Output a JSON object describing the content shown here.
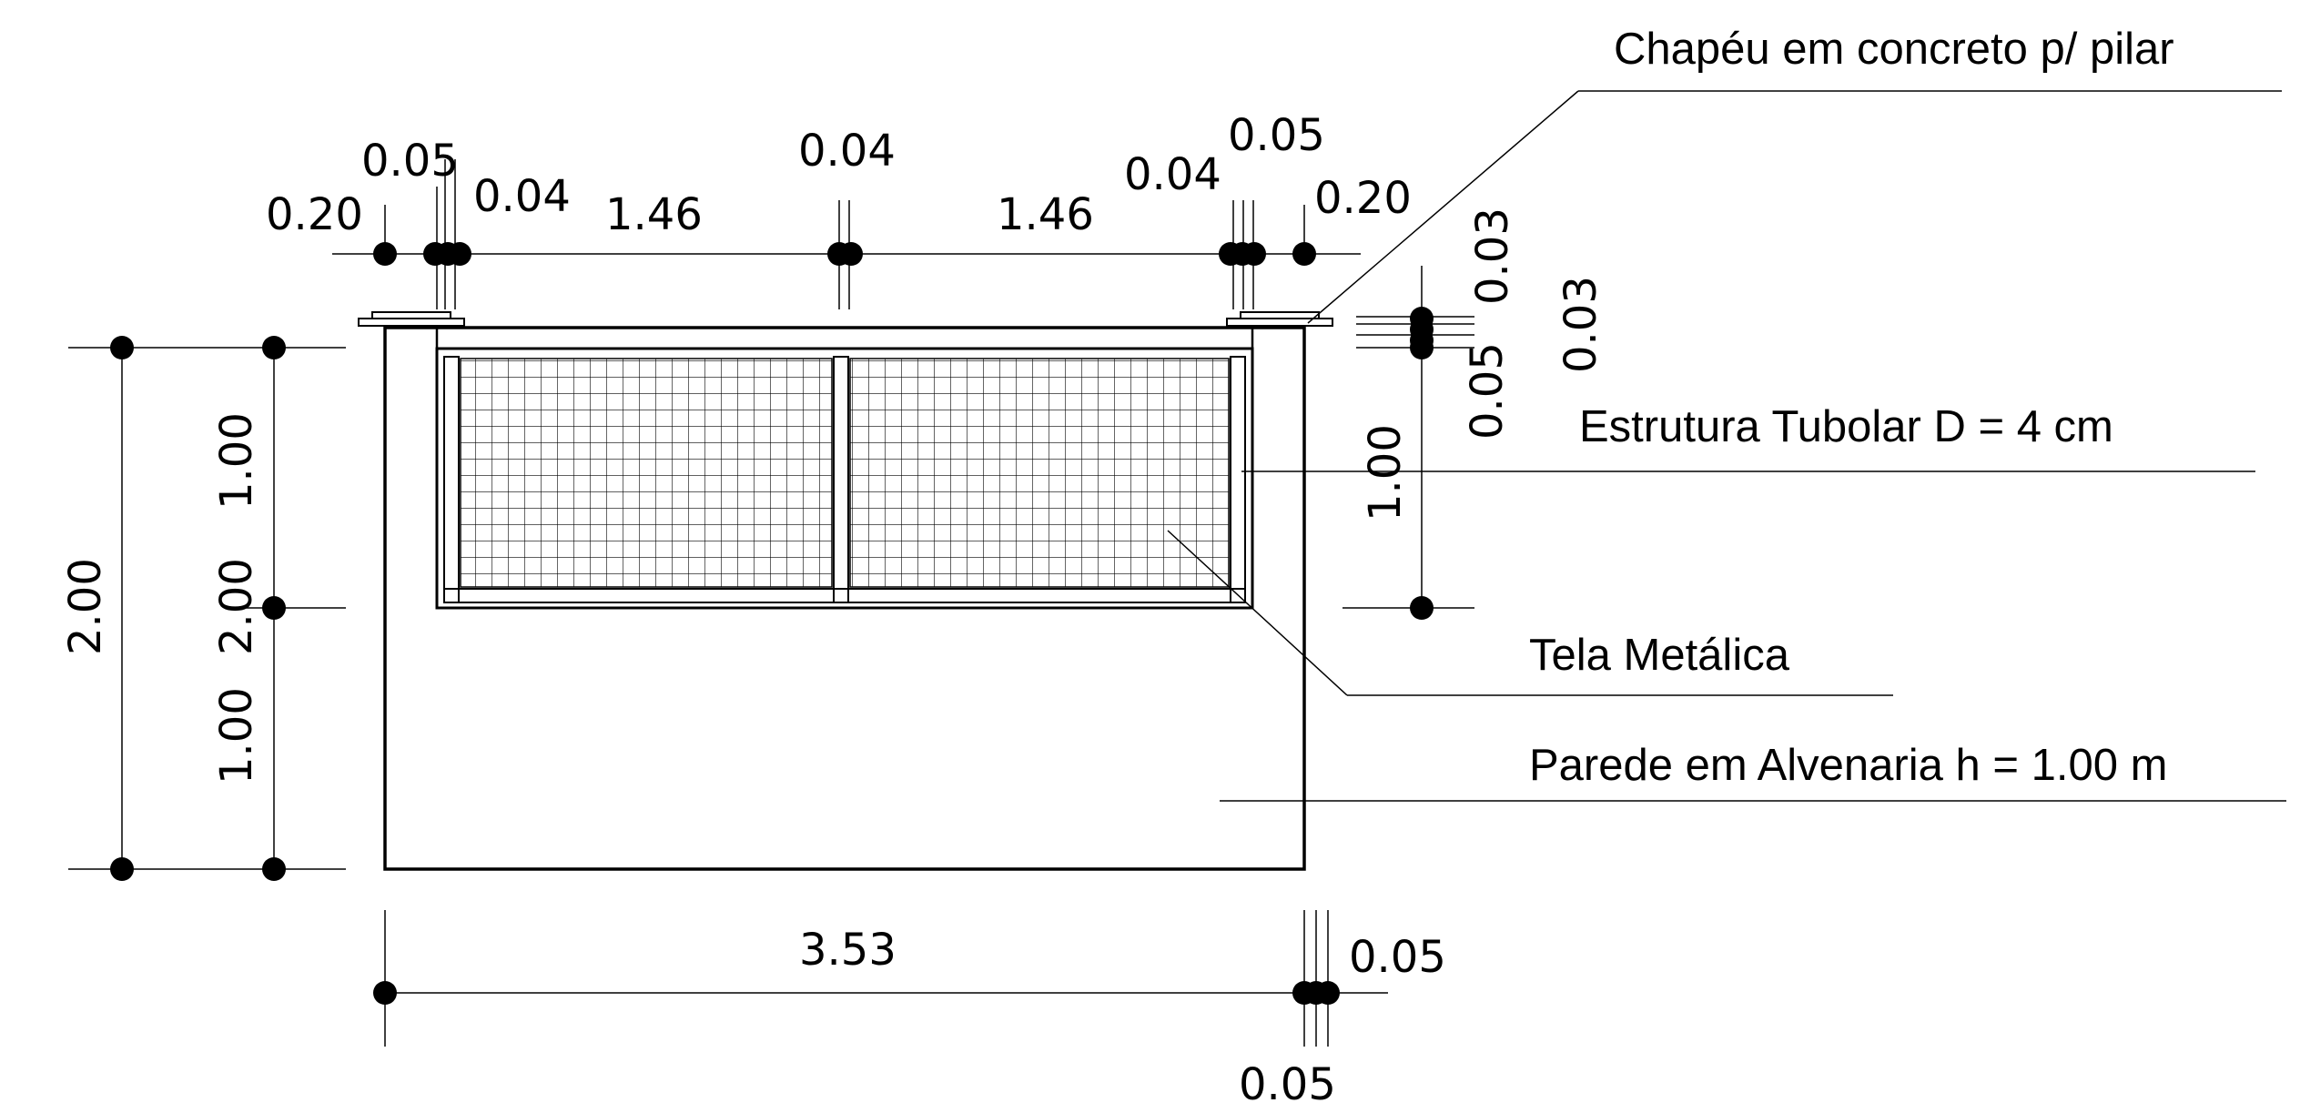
{
  "labels": {
    "chapeu": "Chapéu em concreto p/ pilar",
    "estrutura": "Estrutura Tubolar D = 4 cm",
    "tela": "Tela Metálica",
    "parede": "Parede em Alvenaria h = 1.00 m"
  },
  "dims": {
    "top_left_020": "0.20",
    "top_left_005": "0.05",
    "top_left_004": "0.04",
    "top_146_a": "1.46",
    "top_mid_004": "0.04",
    "top_146_b": "1.46",
    "top_right_004": "0.04",
    "top_right_005": "0.05",
    "top_right_020": "0.20",
    "right_003_a": "0.03",
    "right_003_b": "0.03",
    "right_005": "0.05",
    "right_100": "1.00",
    "left_200_outer": "2.00",
    "left_100_top": "1.00",
    "left_200_mid": "2.00",
    "left_100_bot": "1.00",
    "bottom_353": "3.53",
    "bottom_005_a": "0.05",
    "bottom_005_b": "0.05"
  }
}
